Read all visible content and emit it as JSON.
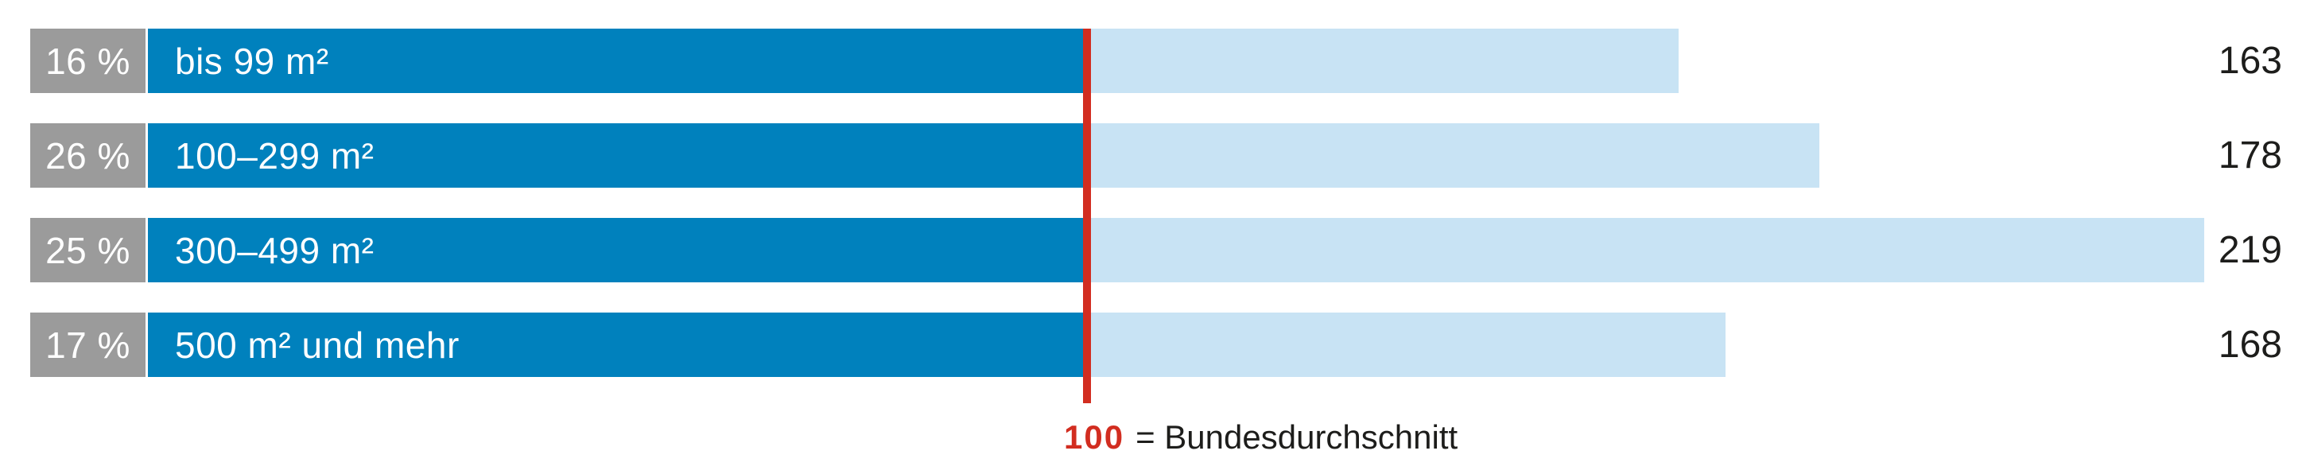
{
  "chart_data": {
    "type": "bar",
    "title": "",
    "orientation": "horizontal",
    "xlim": [
      0,
      230
    ],
    "grid": false,
    "legend_position": "bottom-center",
    "rows": [
      {
        "percent_label": "16 %",
        "label": "bis 99 m²",
        "value": 163
      },
      {
        "percent_label": "26 %",
        "label": "100–299 m²",
        "value": 178
      },
      {
        "percent_label": "25 %",
        "label": "300–499 m²",
        "value": 219
      },
      {
        "percent_label": "17 %",
        "label": "500 m² und mehr",
        "value": 168
      }
    ],
    "reference": {
      "value": 100,
      "value_label": "100",
      "label": "= Bundesdurchschnitt"
    }
  },
  "colors": {
    "dark_blue": "#0081BD",
    "light_blue": "#C8E3F4",
    "gray": "#9B9B9B",
    "red": "#D22D20",
    "text": "#1D1D1B",
    "bar_text": "#FFFFFF"
  }
}
